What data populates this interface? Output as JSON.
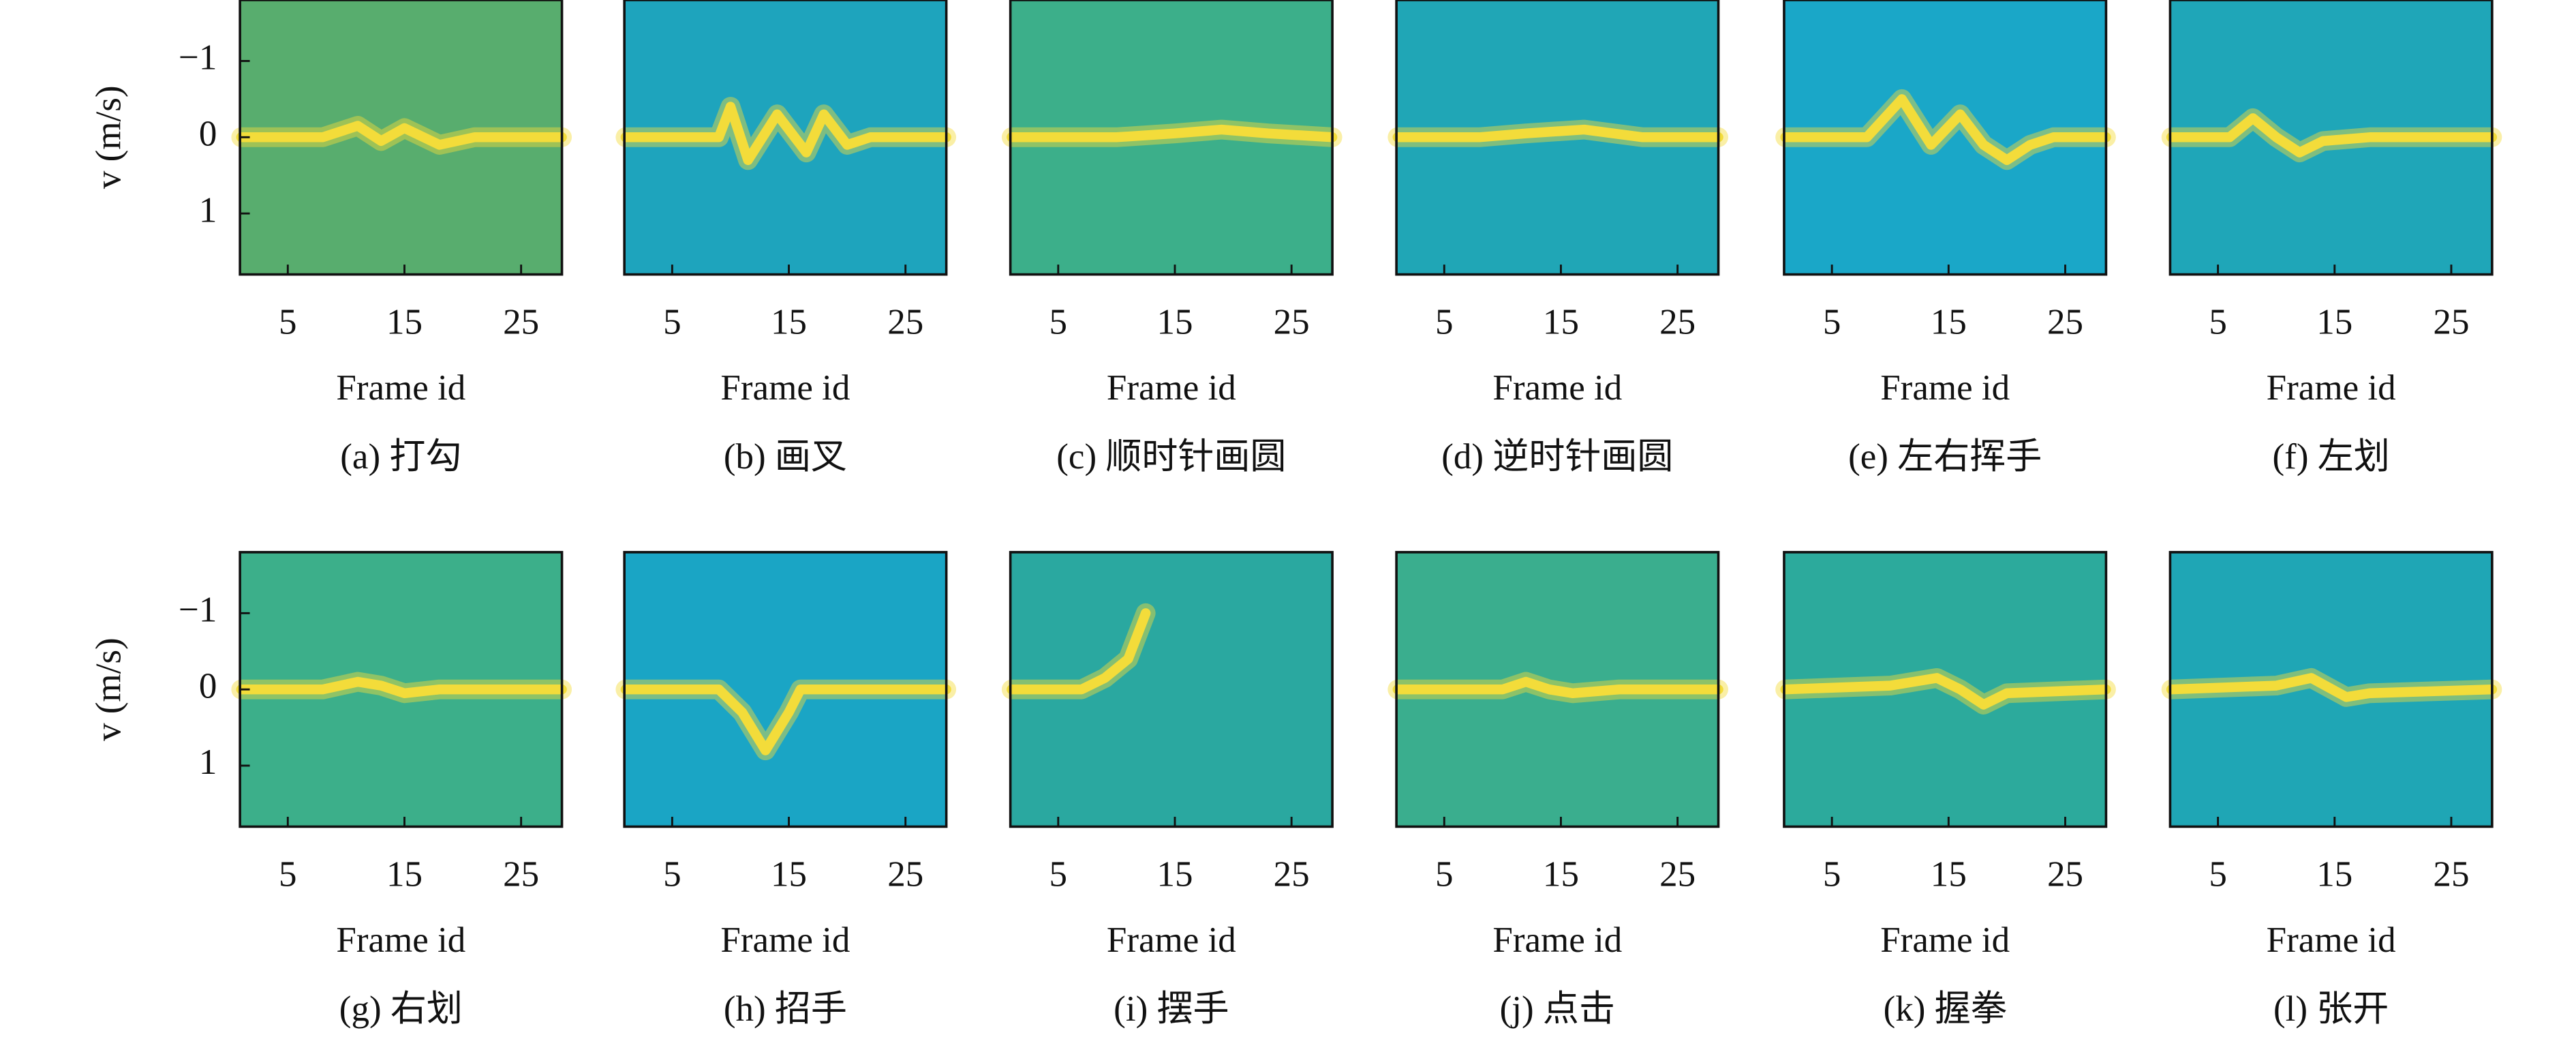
{
  "chart_data": [
    {
      "type": "line",
      "caption": "(a) 打勾",
      "xlabel": "Frame id",
      "ylabel": "v (m/s)",
      "background_color": "#58ad6e",
      "xlim": [
        0.9,
        28.5
      ],
      "ylim": [
        -1.8,
        1.8
      ],
      "y_inverted": true,
      "xticks": [
        5,
        15,
        25
      ],
      "yticks": [
        {
          "value": -1,
          "label": "−1"
        },
        0,
        1
      ],
      "series": [
        {
          "color": "#f3dc3a",
          "x": [
            1,
            8,
            11,
            13,
            15,
            18,
            21,
            28.5
          ],
          "values": [
            0,
            0,
            -0.15,
            0.05,
            -0.12,
            0.1,
            0,
            0
          ]
        }
      ]
    },
    {
      "type": "line",
      "caption": "(b) 画叉",
      "xlabel": "Frame id",
      "background_color": "#1ea4bd",
      "xlim": [
        0.9,
        28.5
      ],
      "ylim": [
        -1.8,
        1.8
      ],
      "y_inverted": true,
      "xticks": [
        5,
        15,
        25
      ],
      "series": [
        {
          "color": "#f3dc3a",
          "x": [
            1,
            9,
            10,
            11.5,
            14,
            16.5,
            18,
            20,
            22,
            28.5
          ],
          "values": [
            0,
            0,
            -0.4,
            0.3,
            -0.3,
            0.2,
            -0.3,
            0.1,
            0,
            0
          ]
        }
      ]
    },
    {
      "type": "line",
      "caption": "(c) 顺时针画圆",
      "xlabel": "Frame id",
      "background_color": "#3caf8a",
      "xlim": [
        0.9,
        28.5
      ],
      "ylim": [
        -1.8,
        1.8
      ],
      "y_inverted": true,
      "xticks": [
        5,
        15,
        25
      ],
      "series": [
        {
          "color": "#f3dc3a",
          "x": [
            1,
            10,
            15,
            19,
            23,
            28.5
          ],
          "values": [
            0,
            0,
            -0.05,
            -0.1,
            -0.05,
            0
          ]
        }
      ]
    },
    {
      "type": "line",
      "caption": "(d) 逆时针画圆",
      "xlabel": "Frame id",
      "background_color": "#20a6b6",
      "xlim": [
        0.9,
        28.5
      ],
      "ylim": [
        -1.8,
        1.8
      ],
      "y_inverted": true,
      "xticks": [
        5,
        15,
        25
      ],
      "series": [
        {
          "color": "#f3dc3a",
          "x": [
            1,
            8,
            12,
            17,
            22,
            28.5
          ],
          "values": [
            0,
            0,
            -0.05,
            -0.1,
            0,
            0
          ]
        }
      ]
    },
    {
      "type": "line",
      "caption": "(e) 左右挥手",
      "xlabel": "Frame id",
      "background_color": "#1aa7c8",
      "xlim": [
        0.9,
        28.5
      ],
      "ylim": [
        -1.8,
        1.8
      ],
      "y_inverted": true,
      "xticks": [
        5,
        15,
        25
      ],
      "series": [
        {
          "color": "#f3dc3a",
          "x": [
            1,
            8,
            11,
            13.5,
            16,
            18,
            20,
            22,
            24,
            28.5
          ],
          "values": [
            0,
            0,
            -0.5,
            0.1,
            -0.3,
            0.1,
            0.3,
            0.1,
            0,
            0
          ]
        }
      ]
    },
    {
      "type": "line",
      "caption": "(f) 左划",
      "xlabel": "Frame id",
      "background_color": "#1fa6b8",
      "xlim": [
        0.9,
        28.5
      ],
      "ylim": [
        -1.8,
        1.8
      ],
      "y_inverted": true,
      "xticks": [
        5,
        15,
        25
      ],
      "series": [
        {
          "color": "#f3dc3a",
          "x": [
            1,
            6,
            8,
            10,
            12,
            14,
            18,
            28.5
          ],
          "values": [
            0,
            0,
            -0.25,
            0,
            0.2,
            0.05,
            0,
            0
          ]
        }
      ]
    },
    {
      "type": "line",
      "caption": "(g) 右划",
      "xlabel": "Frame id",
      "ylabel": "v (m/s)",
      "background_color": "#3caf8a",
      "xlim": [
        0.9,
        28.5
      ],
      "ylim": [
        -1.8,
        1.8
      ],
      "y_inverted": true,
      "xticks": [
        5,
        15,
        25
      ],
      "yticks": [
        {
          "value": -1,
          "label": "−1"
        },
        0,
        1
      ],
      "series": [
        {
          "color": "#f3dc3a",
          "x": [
            1,
            8,
            11,
            13,
            15,
            18,
            28.5
          ],
          "values": [
            0,
            0,
            -0.1,
            -0.05,
            0.05,
            0,
            0
          ]
        }
      ]
    },
    {
      "type": "line",
      "caption": "(h) 招手",
      "xlabel": "Frame id",
      "background_color": "#1aa5c5",
      "xlim": [
        0.9,
        28.5
      ],
      "ylim": [
        -1.8,
        1.8
      ],
      "y_inverted": true,
      "xticks": [
        5,
        15,
        25
      ],
      "series": [
        {
          "color": "#f3dc3a",
          "x": [
            1,
            9,
            11,
            13,
            15,
            16,
            28.5
          ],
          "values": [
            0,
            0,
            0.3,
            0.8,
            0.3,
            0,
            0
          ]
        }
      ]
    },
    {
      "type": "line",
      "caption": "(i) 摆手",
      "xlabel": "Frame id",
      "background_color": "#2aa8a0",
      "xlim": [
        0.9,
        28.5
      ],
      "ylim": [
        -1.8,
        1.8
      ],
      "y_inverted": true,
      "xticks": [
        5,
        15,
        25
      ],
      "series": [
        {
          "color": "#f3dc3a",
          "x": [
            1,
            7,
            9,
            11,
            12.5
          ],
          "values": [
            0,
            0,
            -0.15,
            -0.4,
            -1.0
          ]
        }
      ]
    },
    {
      "type": "line",
      "caption": "(j) 点击",
      "xlabel": "Frame id",
      "background_color": "#3aae8e",
      "xlim": [
        0.9,
        28.5
      ],
      "ylim": [
        -1.8,
        1.8
      ],
      "y_inverted": true,
      "xticks": [
        5,
        15,
        25
      ],
      "series": [
        {
          "color": "#f3dc3a",
          "x": [
            1,
            10,
            12,
            14,
            16,
            20,
            28.5
          ],
          "values": [
            0,
            0,
            -0.1,
            0,
            0.05,
            0,
            0
          ]
        }
      ]
    },
    {
      "type": "line",
      "caption": "(k) 握拳",
      "xlabel": "Frame id",
      "background_color": "#2caa9c",
      "xlim": [
        0.9,
        28.5
      ],
      "ylim": [
        -1.8,
        1.8
      ],
      "y_inverted": true,
      "xticks": [
        5,
        15,
        25
      ],
      "series": [
        {
          "color": "#f3dc3a",
          "x": [
            1,
            10,
            14,
            16,
            18,
            20,
            28.5
          ],
          "values": [
            0,
            -0.05,
            -0.15,
            0,
            0.2,
            0.05,
            0
          ]
        }
      ]
    },
    {
      "type": "line",
      "caption": "(l) 张开",
      "xlabel": "Frame id",
      "background_color": "#1fa6b5",
      "xlim": [
        0.9,
        28.5
      ],
      "ylim": [
        -1.8,
        1.8
      ],
      "y_inverted": true,
      "xticks": [
        5,
        15,
        25
      ],
      "series": [
        {
          "color": "#f3dc3a",
          "x": [
            1,
            10,
            13,
            16,
            18,
            28.5
          ],
          "values": [
            0,
            -0.05,
            -0.15,
            0.1,
            0.05,
            0
          ]
        }
      ]
    }
  ]
}
